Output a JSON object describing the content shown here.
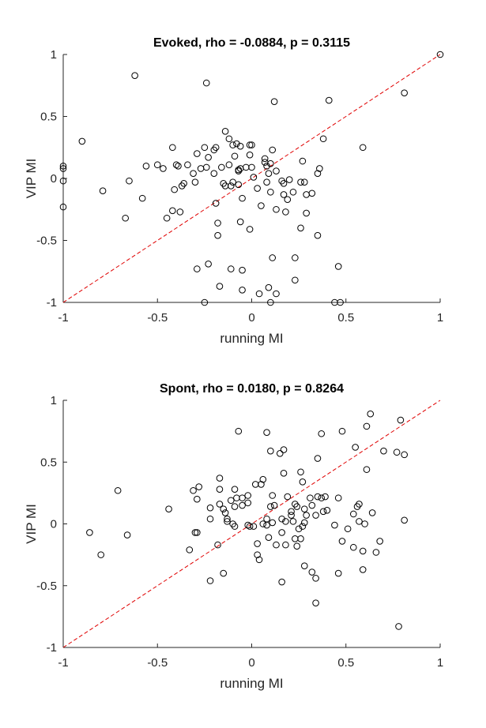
{
  "chart_data": [
    {
      "type": "scatter",
      "title": "Evoked, rho = -0.0884, p = 0.3115",
      "x_label": "running MI",
      "y_label": "VIP MI",
      "color": "#000000",
      "xlim": [
        -1,
        1
      ],
      "ylim": [
        -1,
        1
      ],
      "xticks": [
        -1,
        -0.5,
        0,
        0.5,
        1
      ],
      "yticks": [
        -1,
        -0.5,
        0,
        0.5,
        1
      ],
      "x": [
        1,
        -0.62,
        -0.24,
        0.12,
        0.41,
        0.81,
        -0.9,
        0.59,
        -1,
        -1,
        -1,
        -1,
        -0.79,
        -0.65,
        -0.67,
        -0.58,
        -0.56,
        -0.5,
        -0.47,
        -0.45,
        -0.42,
        -0.41,
        -0.42,
        -0.4,
        -0.39,
        -0.38,
        -0.37,
        -0.36,
        -0.34,
        -0.31,
        -0.3,
        -0.29,
        -0.27,
        -0.25,
        -0.24,
        -0.23,
        -0.2,
        -0.19,
        -0.2,
        -0.16,
        -0.19,
        -0.18,
        -0.18,
        -0.14,
        -0.12,
        -0.15,
        -0.14,
        -0.12,
        -0.11,
        -0.1,
        -0.1,
        -0.08,
        -0.06,
        -0.07,
        -0.07,
        -0.07,
        -0.06,
        -0.09,
        -0.05,
        -0.06,
        -0.03,
        -0.01,
        0,
        -0.01,
        -0.01,
        0,
        0.01,
        0.03,
        0.05,
        0.07,
        0.08,
        0.07,
        0.08,
        0.09,
        0.1,
        0.11,
        0.1,
        0.13,
        0.16,
        0.13,
        0.17,
        0.17,
        0.18,
        0.19,
        0.2,
        0.22,
        0.26,
        0.27,
        0.28,
        0.29,
        0.26,
        0.29,
        0.32,
        0.35,
        0.36,
        0.35,
        0.38,
        0.11,
        0.23,
        0.23,
        0.46,
        0.44,
        0.47,
        -0.29,
        -0.23,
        -0.25,
        -0.17,
        -0.11,
        -0.05,
        -0.05,
        0.04,
        0.09,
        0.1,
        0.13
      ],
      "values": [
        1,
        0.83,
        0.77,
        0.62,
        0.63,
        0.69,
        0.3,
        0.25,
        0.1,
        0.08,
        -0.02,
        -0.23,
        -0.1,
        -0.02,
        -0.32,
        -0.16,
        0.1,
        0.11,
        0.08,
        -0.32,
        0.25,
        -0.09,
        -0.26,
        0.11,
        0.1,
        -0.27,
        -0.06,
        -0.04,
        0.11,
        0.04,
        -0.03,
        0.2,
        0.08,
        0.25,
        0.09,
        0.17,
        0.23,
        0.25,
        0.04,
        0.09,
        -0.2,
        -0.36,
        -0.46,
        0.38,
        0.32,
        -0.04,
        -0.06,
        0.11,
        -0.06,
        -0.03,
        0.27,
        0.28,
        0.26,
        0.06,
        0.07,
        -0.05,
        0.08,
        0.18,
        -0.16,
        -0.35,
        0.09,
        0.27,
        0.27,
        0.19,
        -0.41,
        0.09,
        0.01,
        -0.08,
        -0.22,
        0.16,
        0.1,
        0.13,
        -0.03,
        0.04,
        -0.11,
        0.23,
        0.12,
        0.06,
        -0.02,
        -0.25,
        -0.04,
        -0.13,
        -0.27,
        -0.17,
        -0.01,
        -0.11,
        -0.03,
        0.14,
        -0.03,
        -0.13,
        -0.4,
        -0.28,
        -0.12,
        0.04,
        0.08,
        -0.46,
        0.32,
        -0.64,
        -0.64,
        -0.82,
        -0.71,
        -1,
        -1,
        -0.73,
        -0.69,
        -1,
        -0.87,
        -0.73,
        -0.74,
        -0.9,
        -0.93,
        -0.88,
        -1,
        -0.93
      ]
    },
    {
      "type": "scatter",
      "title": "Spont, rho = 0.0180, p = 0.8264",
      "x_label": "running MI",
      "y_label": "VIP MI",
      "color": "#000000",
      "xlim": [
        -1,
        1
      ],
      "ylim": [
        -1,
        1
      ],
      "xticks": [
        -1,
        -0.5,
        0,
        0.5,
        1
      ],
      "yticks": [
        -1,
        -0.5,
        0,
        0.5,
        1
      ],
      "x": [
        0.79,
        0.63,
        0.61,
        0.81,
        0.77,
        0.7,
        0.55,
        0.48,
        0.37,
        0.35,
        0.08,
        -0.07,
        0.1,
        0.15,
        0.17,
        0.26,
        0.27,
        0.17,
        0.61,
        -0.71,
        -0.86,
        -0.8,
        -0.66,
        -0.44,
        -0.33,
        -0.31,
        -0.28,
        -0.29,
        -0.3,
        -0.29,
        -0.22,
        -0.22,
        -0.22,
        -0.18,
        -0.17,
        -0.17,
        -0.17,
        -0.15,
        -0.15,
        -0.14,
        -0.13,
        -0.13,
        -0.11,
        -0.1,
        -0.09,
        -0.09,
        -0.09,
        -0.08,
        -0.05,
        -0.05,
        -0.02,
        -0.02,
        -0.01,
        -0.02,
        0.01,
        0.02,
        0.03,
        0.03,
        0.04,
        0.06,
        0.05,
        0.06,
        0.08,
        0.08,
        0.09,
        0.1,
        0.11,
        0.12,
        0.13,
        0.16,
        0.16,
        0.16,
        0.18,
        0.18,
        0.19,
        0.21,
        0.21,
        0.22,
        0.23,
        0.23,
        0.24,
        0.24,
        0.25,
        0.27,
        0.28,
        0.28,
        0.29,
        0.28,
        0.31,
        0.32,
        0.32,
        0.34,
        0.34,
        0.34,
        0.35,
        0.37,
        0.38,
        0.39,
        0.4,
        0.44,
        0.46,
        0.46,
        0.48,
        0.54,
        0.54,
        0.56,
        0.57,
        0.57,
        0.59,
        0.59,
        0.6,
        0.64,
        0.66,
        0.68,
        0.81,
        0.78,
        0.51,
        0.11,
        0.26
      ],
      "values": [
        0.84,
        0.89,
        0.79,
        0.56,
        0.58,
        0.59,
        0.62,
        0.75,
        0.73,
        0.53,
        0.74,
        0.75,
        0.59,
        0.57,
        0.6,
        0.42,
        0.34,
        0.41,
        0.44,
        0.27,
        -0.07,
        -0.25,
        -0.09,
        0.12,
        -0.21,
        0.27,
        0.3,
        0.2,
        -0.07,
        -0.07,
        -0.46,
        0.04,
        0.13,
        -0.17,
        0.37,
        0.28,
        0.16,
        0.12,
        -0.4,
        0.09,
        0.04,
        0.02,
        0.19,
        0,
        -0.02,
        0.28,
        0.14,
        0.21,
        0.21,
        0.15,
        0.17,
        -0.01,
        -0.02,
        0.23,
        -0.02,
        0.32,
        -0.16,
        -0.25,
        -0.29,
        0.36,
        0.32,
        0,
        0.04,
        -0.01,
        -0.11,
        0.14,
        0.23,
        0.15,
        -0.17,
        -0.07,
        -0.47,
        0.04,
        0.02,
        -0.17,
        0.22,
        0.07,
        0.1,
        0.02,
        0.16,
        -0.12,
        0.14,
        -0.18,
        -0.04,
        -0.02,
        0.01,
        0.12,
        0.07,
        -0.34,
        0.21,
        -0.39,
        0.15,
        0.07,
        -0.44,
        -0.64,
        0.22,
        0.21,
        0.1,
        0.22,
        0.11,
        -0.01,
        0.21,
        -0.4,
        -0.14,
        -0.19,
        0.08,
        0.14,
        0.16,
        0.02,
        -0.22,
        -0.37,
        0,
        0.09,
        -0.23,
        -0.14,
        0.03,
        -0.83,
        -0.04,
        0.01,
        -0.12
      ]
    }
  ]
}
